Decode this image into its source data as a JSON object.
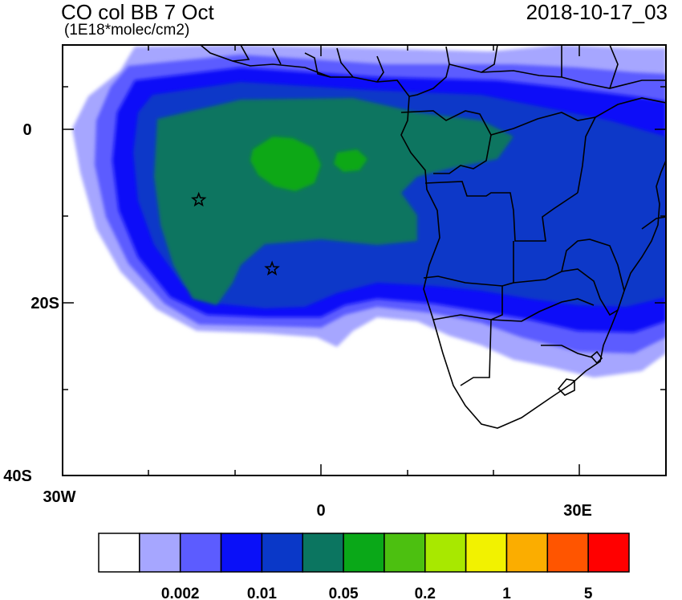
{
  "title": "CO col BB 7 Oct",
  "units": "(1E18*molec/cm2)",
  "datetime": "2018-10-17_03",
  "axes": {
    "x_ticks": [
      "30W",
      "0",
      "30E"
    ],
    "y_ticks": [
      "0",
      "20S",
      "40S"
    ]
  },
  "colorbar": {
    "colors": [
      "#ffffff",
      "#a6a6ff",
      "#5c5cff",
      "#0a10f8",
      "#0a38c8",
      "#0b7560",
      "#0aa818",
      "#4cc010",
      "#a8e800",
      "#f2f200",
      "#fbad00",
      "#ff5500",
      "#ff0000"
    ],
    "labels": [
      "0.002",
      "0.01",
      "0.05",
      "0.2",
      "1",
      "5"
    ]
  },
  "markers": [
    {
      "name": "star-marker-west",
      "lon": -14.2,
      "lat": -8.0
    },
    {
      "name": "star-marker-south",
      "lon": -5.7,
      "lat": -16.0
    }
  ]
}
